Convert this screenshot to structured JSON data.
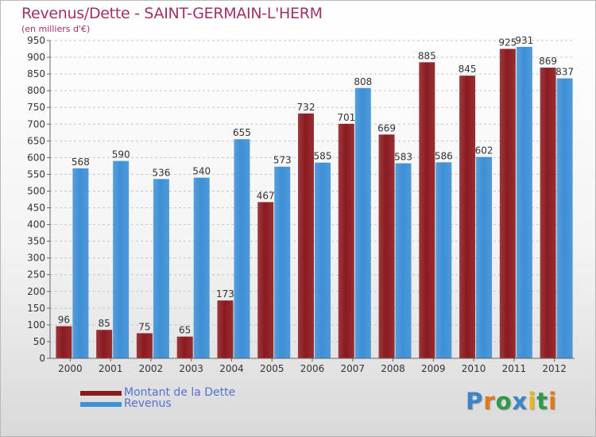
{
  "chart_data": {
    "type": "bar",
    "title": "Revenus/Dette - SAINT-GERMAIN-L'HERM",
    "subtitle": "(en milliers d'€)",
    "xlabel": "",
    "ylabel": "",
    "categories": [
      "2000",
      "2001",
      "2002",
      "2003",
      "2004",
      "2005",
      "2006",
      "2007",
      "2008",
      "2009",
      "2010",
      "2011",
      "2012"
    ],
    "series": [
      {
        "name": "Montant de la Dette",
        "color": "#8b1a1f",
        "values": [
          96,
          85,
          75,
          65,
          173,
          467,
          732,
          701,
          669,
          885,
          845,
          925,
          869
        ]
      },
      {
        "name": "Revenus",
        "color": "#3d8fd6",
        "values": [
          568,
          590,
          536,
          540,
          655,
          573,
          585,
          808,
          583,
          586,
          602,
          931,
          837
        ]
      }
    ],
    "ylim": [
      0,
      950
    ],
    "yticks": [
      0,
      50,
      100,
      150,
      200,
      250,
      300,
      350,
      400,
      450,
      500,
      550,
      600,
      650,
      700,
      750,
      800,
      850,
      900,
      950
    ],
    "grid": true,
    "legend": "bottom-left"
  },
  "logo": {
    "text": "Proxiti",
    "letters": [
      {
        "ch": "P",
        "color": "#3a86c8"
      },
      {
        "ch": "r",
        "color": "#e07a18"
      },
      {
        "ch": "o",
        "color": "#2f9a4c"
      },
      {
        "ch": "x",
        "color": "#3a86c8"
      },
      {
        "ch": "i",
        "color": "#e6b81c"
      },
      {
        "ch": "t",
        "color": "#2f9a4c"
      },
      {
        "ch": "i",
        "color": "#e07a18"
      }
    ]
  }
}
